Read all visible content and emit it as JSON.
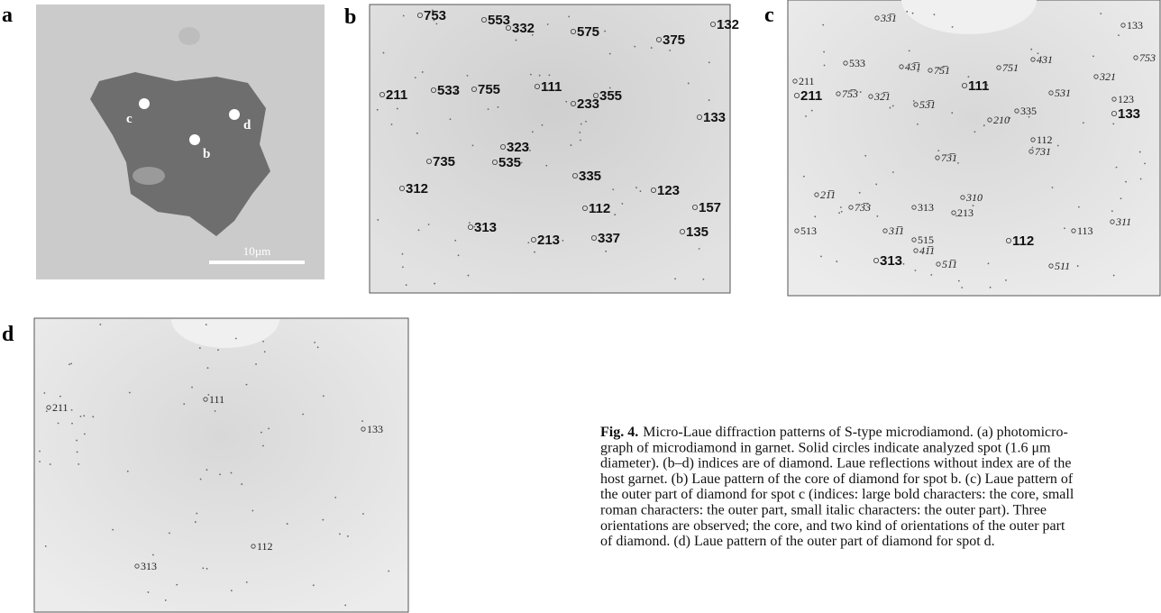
{
  "figure": {
    "panel_a": {
      "label": "a",
      "scale_bar": "10µm",
      "spots": [
        "c",
        "d",
        "b"
      ]
    },
    "panel_b": {
      "label": "b",
      "indices": [
        "753",
        "553",
        "332",
        "575",
        "132",
        "375",
        "211",
        "533",
        "755",
        "111",
        "233",
        "355",
        "133",
        "323",
        "735",
        "535",
        "335",
        "312",
        "123",
        "112",
        "157",
        "313",
        "213",
        "337",
        "135"
      ]
    },
    "panel_c": {
      "label": "c",
      "indices": [
        "33̅1",
        "133",
        "533",
        "43̅1",
        "75̅1",
        "751",
        "431",
        "753",
        "211",
        "111",
        "321",
        "211",
        "75̅3",
        "32̅1",
        "53̅1",
        "531",
        "123",
        "133",
        "335",
        "210",
        "112",
        "731",
        "73̅1",
        "21̅1",
        "73̅3",
        "313",
        "310",
        "213",
        "513",
        "31̅1",
        "515",
        "112",
        "113",
        "311",
        "313",
        "41̅1",
        "51̅1",
        "511"
      ]
    },
    "panel_d": {
      "label": "d",
      "indices": [
        "211",
        "111",
        "133",
        "112",
        "313"
      ]
    },
    "caption": {
      "label": "Fig. 4.",
      "lines": [
        "Micro-Laue diffraction patterns of S-type microdiamond. (a) photomicro-",
        "graph of microdiamond in garnet. Solid circles indicate analyzed spot (1.6 μm",
        "diameter). (b–d) indices are of diamond. Laue reflections without index are of the",
        "host garnet. (b) Laue pattern of the core of diamond for spot b. (c) Laue pattern of",
        "the outer part of diamond for spot c (indices: large bold characters: the core, small",
        "roman characters: the outer part, small italic characters: the outer part). Three",
        "orientations are observed; the core, and two kind of orientations of the outer part",
        "of diamond. (d) Laue pattern of the outer part of diamond for spot d."
      ]
    }
  }
}
